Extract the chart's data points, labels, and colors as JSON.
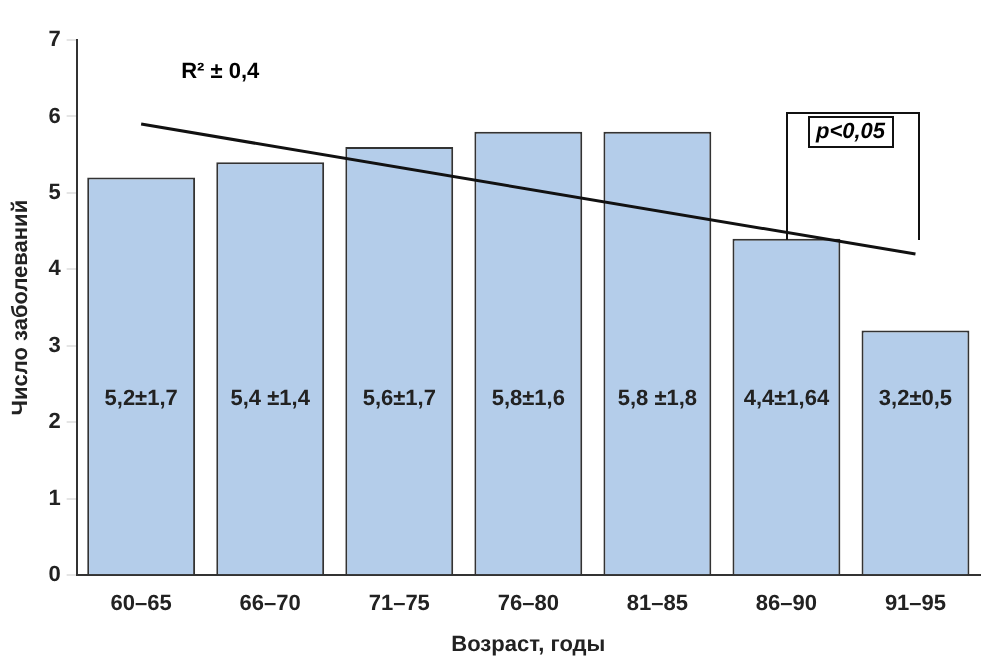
{
  "chart_data": {
    "type": "bar",
    "xlabel": "Возраст, годы",
    "ylabel": "Число заболеваний",
    "categories": [
      "60–65",
      "66–70",
      "71–75",
      "76–80",
      "81–85",
      "86–90",
      "91–95"
    ],
    "series": [
      {
        "color": "#b4cdea",
        "values": [
          5.2,
          5.4,
          5.6,
          5.8,
          5.8,
          4.4,
          3.2
        ],
        "value_labels": [
          "5,2±1,7",
          "5,4 ±1,4",
          "5,6±1,7",
          "5,8±1,6",
          "5,8 ±1,8",
          "4,4±1,64",
          "3,2±0,5"
        ]
      },
      {
        "type": "line",
        "color": "#111111",
        "values": [
          5.9,
          null,
          null,
          null,
          null,
          null,
          4.2
        ]
      }
    ],
    "ylim": [
      0,
      7
    ],
    "yticks": [
      0,
      1,
      2,
      3,
      4,
      5,
      6,
      7
    ],
    "grid": false,
    "legend": false,
    "annotations": [
      "R² ± 0,4",
      "p<0,05"
    ]
  }
}
